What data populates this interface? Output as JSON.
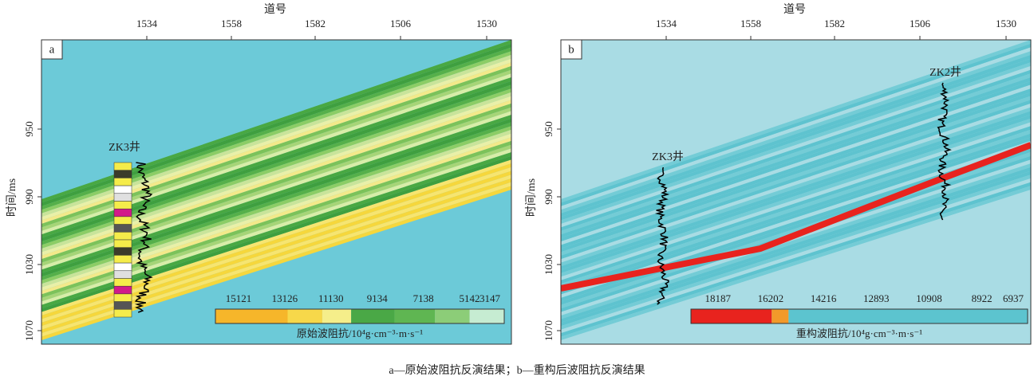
{
  "caption": "a—原始波阻抗反演结果；b—重构后波阻抗反演结果",
  "panels": [
    {
      "label": "a",
      "x_axis_title": "道号",
      "x_ticks": [
        "1534",
        "1558",
        "1582",
        "1506",
        "1530"
      ],
      "y_axis_title": "时间/ms",
      "y_ticks": [
        "950",
        "990",
        "1030",
        "1070"
      ],
      "well_labels": [
        "ZK3井"
      ],
      "colorbar": {
        "labels": [
          "15121",
          "13126",
          "11130",
          "9134",
          "7138",
          "5142",
          "3147"
        ],
        "title": "原始波阻抗/10⁴g·cm⁻³·m·s⁻¹"
      }
    },
    {
      "label": "b",
      "x_axis_title": "道号",
      "x_ticks": [
        "1534",
        "1558",
        "1582",
        "1506",
        "1530"
      ],
      "y_axis_title": "时间/ms",
      "y_ticks": [
        "950",
        "990",
        "1030",
        "1070"
      ],
      "well_labels": [
        "ZK3井",
        "ZK2井"
      ],
      "colorbar": {
        "labels": [
          "18187",
          "16202",
          "14216",
          "12893",
          "10908",
          "8922",
          "6937"
        ],
        "title": "重构波阻抗/10⁴g·cm⁻³·m·s⁻¹"
      }
    }
  ]
}
